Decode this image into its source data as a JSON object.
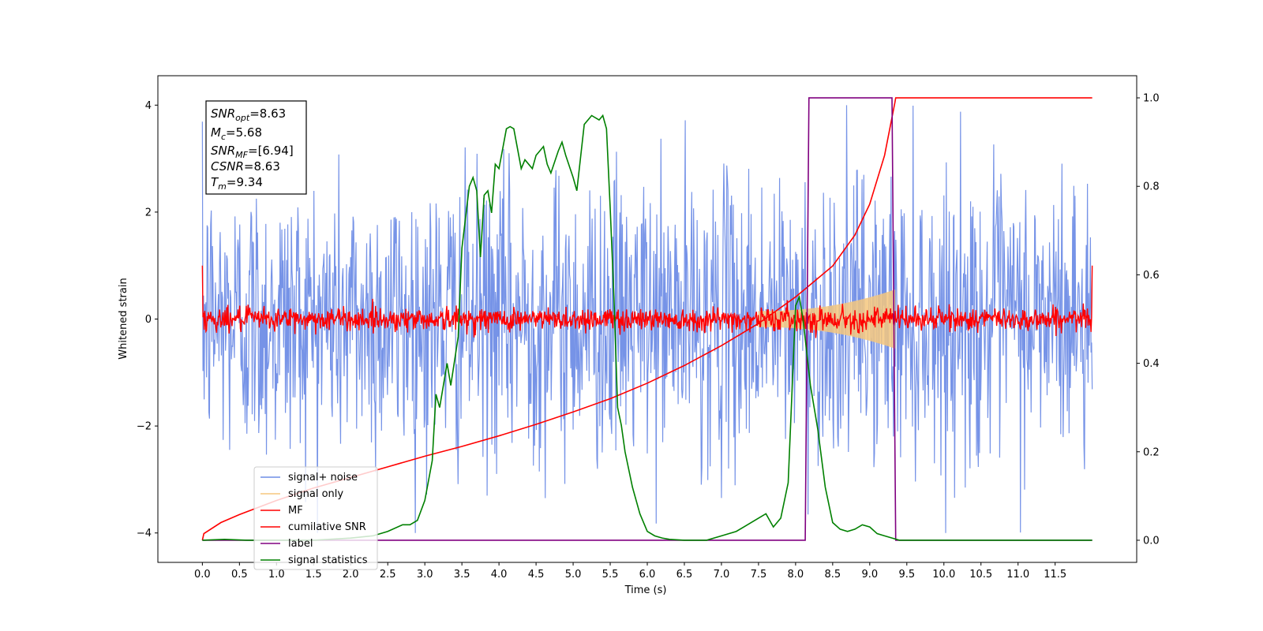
{
  "chart_data": {
    "type": "line",
    "xlabel": "Time (s)",
    "ylabel": "Whitened strain",
    "xlim": [
      -0.6,
      12.6
    ],
    "ylim": [
      -4.55,
      4.55
    ],
    "ylim_right": [
      -0.05,
      1.05
    ],
    "x_ticks": [
      0.0,
      0.5,
      1.0,
      1.5,
      2.0,
      2.5,
      3.0,
      3.5,
      4.0,
      4.5,
      5.0,
      5.5,
      6.0,
      6.5,
      7.0,
      7.5,
      8.0,
      8.5,
      9.0,
      9.5,
      10.0,
      10.5,
      11.0,
      11.5
    ],
    "x_tick_labels": [
      "0.0",
      "0.5",
      "1.0",
      "1.5",
      "2.0",
      "2.5",
      "3.0",
      "3.5",
      "4.0",
      "4.5",
      "5.0",
      "5.5",
      "6.0",
      "6.5",
      "7.0",
      "7.5",
      "8.0",
      "8.5",
      "9.0",
      "9.5",
      "10.0",
      "10.5",
      "11.0",
      "11.5"
    ],
    "y_ticks": [
      4,
      2,
      0,
      -2,
      -4
    ],
    "y_tick_labels": [
      "4",
      "2",
      "0",
      "−2",
      "−4"
    ],
    "y_right_ticks": [
      1.0,
      0.8,
      0.6,
      0.4,
      0.2,
      0.0
    ],
    "y_right_tick_labels": [
      "1.0",
      "0.8",
      "0.6",
      "0.4",
      "0.2",
      "0.0"
    ],
    "grid": false,
    "legend_placement": "lower-left",
    "annotation": {
      "lines": [
        {
          "main": "SNR",
          "sub": "opt",
          "rest": "=8.63"
        },
        {
          "main": "M",
          "sub": "c",
          "rest": "=5.68"
        },
        {
          "main": "SNR",
          "sub": "MF",
          "rest": "=[6.94]"
        },
        {
          "main": "CSNR",
          "sub": "",
          "rest": "=8.63"
        },
        {
          "main": "T",
          "sub": "m",
          "rest": "=9.34"
        }
      ]
    },
    "noise": {
      "x_start": 0.0,
      "x_end": 12.0,
      "typical_amplitude": 1.4,
      "peak_amplitude": 4.0
    },
    "signal_chirp": {
      "x_start": 7.5,
      "x_end": 9.34,
      "envelope_start": 0.15,
      "envelope_end": 0.55
    },
    "mf": {
      "x_start": 0.0,
      "x_end": 12.0,
      "typical_amplitude": 0.2,
      "edge_value": 1.0
    },
    "series": [
      {
        "name": "signal+ noise",
        "color": "#6f8de6",
        "axis": "left"
      },
      {
        "name": "signal only",
        "color": "#f5c77e",
        "axis": "left"
      },
      {
        "name": "MF",
        "color": "#ff0000",
        "axis": "left"
      },
      {
        "name": "cumilative SNR",
        "color": "#ff0000",
        "axis": "right",
        "x": [
          0.0,
          0.02,
          0.25,
          0.5,
          1.0,
          1.5,
          2.0,
          2.5,
          3.0,
          3.5,
          4.0,
          4.5,
          5.0,
          5.5,
          6.0,
          6.5,
          7.0,
          7.5,
          8.0,
          8.5,
          8.8,
          9.0,
          9.2,
          9.34,
          9.35,
          12.0
        ],
        "values": [
          0.0,
          0.015,
          0.04,
          0.058,
          0.09,
          0.118,
          0.142,
          0.166,
          0.19,
          0.212,
          0.236,
          0.262,
          0.29,
          0.32,
          0.355,
          0.395,
          0.44,
          0.49,
          0.55,
          0.62,
          0.69,
          0.76,
          0.87,
          0.99,
          1.0,
          1.0
        ]
      },
      {
        "name": "label",
        "color": "#800080",
        "axis": "right",
        "x": [
          0.0,
          8.13,
          8.18,
          9.3,
          9.35,
          12.0
        ],
        "values": [
          0.0,
          0.0,
          1.0,
          1.0,
          0.0,
          0.0
        ]
      },
      {
        "name": "signal statistics",
        "color": "#008000",
        "axis": "right",
        "x": [
          0.0,
          0.3,
          0.6,
          1.0,
          1.5,
          2.0,
          2.3,
          2.5,
          2.7,
          2.8,
          2.9,
          3.0,
          3.1,
          3.15,
          3.2,
          3.3,
          3.35,
          3.45,
          3.5,
          3.6,
          3.65,
          3.7,
          3.75,
          3.8,
          3.85,
          3.9,
          3.95,
          4.0,
          4.1,
          4.15,
          4.2,
          4.3,
          4.35,
          4.45,
          4.5,
          4.6,
          4.65,
          4.7,
          4.8,
          4.85,
          4.9,
          5.0,
          5.05,
          5.15,
          5.25,
          5.35,
          5.4,
          5.45,
          5.5,
          5.55,
          5.6,
          5.65,
          5.7,
          5.8,
          5.9,
          6.0,
          6.1,
          6.2,
          6.3,
          6.5,
          6.8,
          7.0,
          7.2,
          7.3,
          7.5,
          7.6,
          7.7,
          7.8,
          7.9,
          8.0,
          8.05,
          8.1,
          8.2,
          8.3,
          8.4,
          8.5,
          8.6,
          8.7,
          8.8,
          8.9,
          9.0,
          9.1,
          9.2,
          9.3,
          9.4,
          9.6,
          10.0,
          11.0,
          12.0
        ],
        "values": [
          0.0,
          0.002,
          0.0,
          0.0,
          0.0,
          0.005,
          0.01,
          0.02,
          0.035,
          0.035,
          0.045,
          0.09,
          0.18,
          0.33,
          0.3,
          0.4,
          0.35,
          0.46,
          0.66,
          0.8,
          0.82,
          0.79,
          0.64,
          0.78,
          0.79,
          0.74,
          0.85,
          0.84,
          0.93,
          0.935,
          0.93,
          0.84,
          0.86,
          0.84,
          0.87,
          0.89,
          0.85,
          0.83,
          0.88,
          0.9,
          0.87,
          0.82,
          0.79,
          0.94,
          0.96,
          0.95,
          0.96,
          0.93,
          0.75,
          0.55,
          0.3,
          0.26,
          0.2,
          0.12,
          0.06,
          0.02,
          0.01,
          0.005,
          0.002,
          0.0,
          0.0,
          0.01,
          0.02,
          0.03,
          0.05,
          0.06,
          0.03,
          0.05,
          0.13,
          0.53,
          0.55,
          0.5,
          0.35,
          0.25,
          0.12,
          0.04,
          0.025,
          0.02,
          0.025,
          0.035,
          0.03,
          0.015,
          0.01,
          0.005,
          0.0,
          0.0,
          0.0,
          0.0,
          0.0
        ]
      }
    ]
  }
}
